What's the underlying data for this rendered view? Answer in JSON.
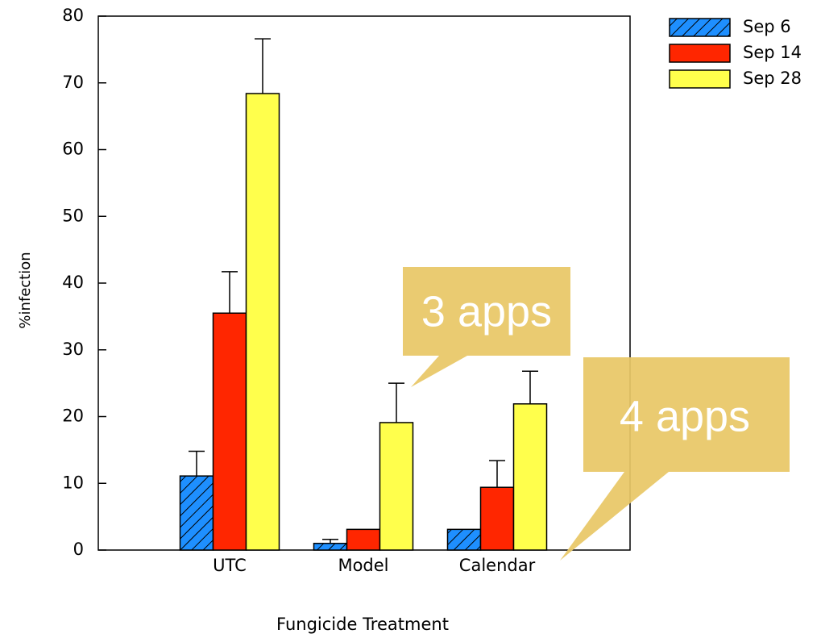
{
  "chart_data": {
    "type": "bar",
    "xlabel": "Fungicide Treatment",
    "ylabel": "%infection",
    "categories": [
      "UTC",
      "Model",
      "Calendar"
    ],
    "series": [
      {
        "name": "Sep 6",
        "color": "#1e8fff",
        "hatch": true,
        "values": [
          11.1,
          1.0,
          3.1
        ],
        "errors": [
          3.7,
          0.6,
          0
        ]
      },
      {
        "name": "Sep 14",
        "color": "#ff2600",
        "values": [
          35.5,
          3.1,
          9.4
        ],
        "errors": [
          6.2,
          0,
          4.0
        ]
      },
      {
        "name": "Sep 28",
        "color": "#ffff4c",
        "values": [
          68.4,
          19.1,
          21.9
        ],
        "errors": [
          8.2,
          5.9,
          4.9
        ]
      }
    ],
    "ylim": [
      0,
      80
    ],
    "yticks": [
      0,
      10,
      20,
      30,
      40,
      50,
      60,
      70,
      80
    ],
    "legend": "upper right",
    "annotations": [
      "3 apps",
      "4 apps"
    ]
  }
}
